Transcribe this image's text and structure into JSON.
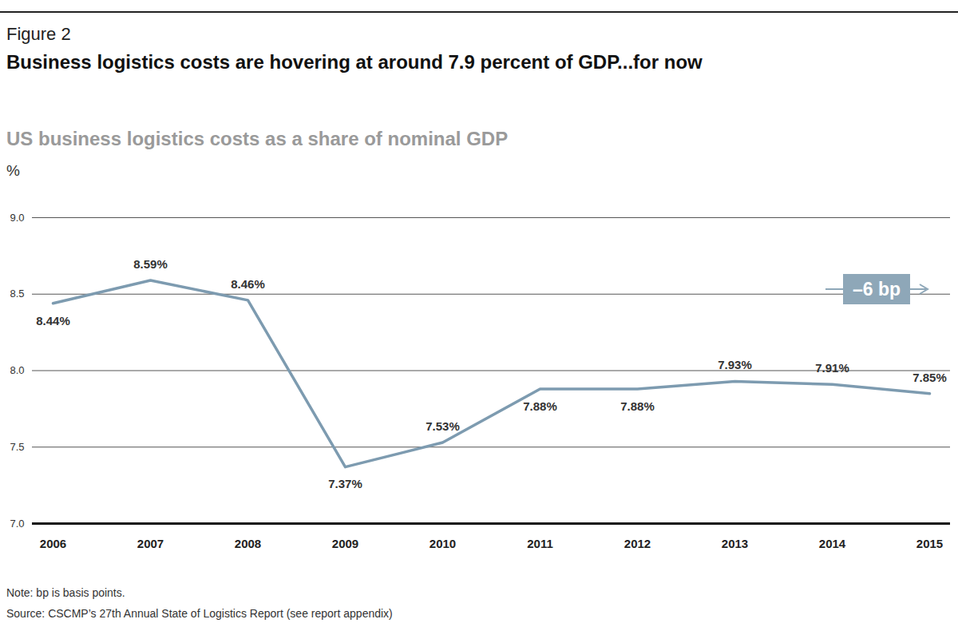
{
  "chart_data": {
    "type": "line",
    "figure_label": "Figure 2",
    "title": "Business logistics costs are hovering at around 7.9 percent of GDP...for now",
    "subtitle": "US business logistics costs as a share of nominal GDP",
    "y_label": "%",
    "categories": [
      "2006",
      "2007",
      "2008",
      "2009",
      "2010",
      "2011",
      "2012",
      "2013",
      "2014",
      "2015"
    ],
    "values": [
      8.44,
      8.59,
      8.46,
      7.37,
      7.53,
      7.88,
      7.88,
      7.93,
      7.91,
      7.85
    ],
    "value_labels": [
      "8.44%",
      "8.59%",
      "8.46%",
      "7.37%",
      "7.53%",
      "7.88%",
      "7.88%",
      "7.93%",
      "7.91%",
      "7.85%"
    ],
    "data_labels": true,
    "color": "#7d9bb0",
    "ylim": [
      7,
      9
    ],
    "yticks": [
      {
        "value": 7,
        "label": "7.0"
      },
      {
        "value": 7.5,
        "label": "7.5"
      },
      {
        "value": 8,
        "label": "8.0"
      },
      {
        "value": 8.5,
        "label": "8.5"
      },
      {
        "value": 9,
        "label": "9.0"
      }
    ],
    "grid": true,
    "annotations": [
      {
        "text": "–6 bp"
      }
    ],
    "note": "Note: bp is basis points.",
    "source": "Source: CSCMP’s 27th Annual State of Logistics Report (see report appendix)"
  }
}
